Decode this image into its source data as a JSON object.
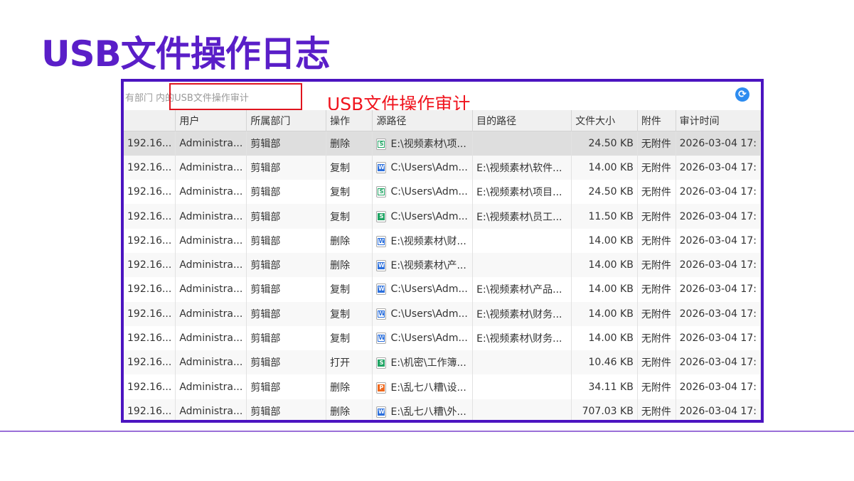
{
  "page": {
    "title": "USB文件操作日志"
  },
  "toolbar": {
    "breadcrumb": "有部门 内的USB文件操作审计",
    "annotation": "USB文件操作审计",
    "refresh_icon": "refresh-icon"
  },
  "colors": {
    "title": "#5a1ec8",
    "frame": "#4b14c0",
    "annotation": "#f0141e",
    "excel": "#1fa463",
    "word": "#2b6fdc",
    "ppt": "#f0691e"
  },
  "table": {
    "columns": [
      "",
      "用户",
      "所属部门",
      "操作",
      "源路径",
      "目的路径",
      "文件大小",
      "附件",
      "审计时间"
    ],
    "rows": [
      {
        "ip": "192.16...",
        "user": "Administra...",
        "dept": "剪辑部",
        "op": "删除",
        "icon": "excel-outline",
        "src": "E:\\视频素材\\项...",
        "dst": "",
        "size": "24.50 KB",
        "attach": "无附件",
        "time": "2026-03-04 17:"
      },
      {
        "ip": "192.16...",
        "user": "Administra...",
        "dept": "剪辑部",
        "op": "复制",
        "icon": "word-filled",
        "src": "C:\\Users\\Adm...",
        "dst": "E:\\视频素材\\软件...",
        "size": "14.00 KB",
        "attach": "无附件",
        "time": "2026-03-04 17:"
      },
      {
        "ip": "192.16...",
        "user": "Administra...",
        "dept": "剪辑部",
        "op": "复制",
        "icon": "excel-outline",
        "src": "C:\\Users\\Adm...",
        "dst": "E:\\视频素材\\项目...",
        "size": "24.50 KB",
        "attach": "无附件",
        "time": "2026-03-04 17:"
      },
      {
        "ip": "192.16...",
        "user": "Administra...",
        "dept": "剪辑部",
        "op": "复制",
        "icon": "excel-filled",
        "src": "C:\\Users\\Adm...",
        "dst": "E:\\视频素材\\员工...",
        "size": "11.50 KB",
        "attach": "无附件",
        "time": "2026-03-04 17:"
      },
      {
        "ip": "192.16...",
        "user": "Administra...",
        "dept": "剪辑部",
        "op": "删除",
        "icon": "word-outline",
        "src": "E:\\视频素材\\财...",
        "dst": "",
        "size": "14.00 KB",
        "attach": "无附件",
        "time": "2026-03-04 17:"
      },
      {
        "ip": "192.16...",
        "user": "Administra...",
        "dept": "剪辑部",
        "op": "删除",
        "icon": "word-filled",
        "src": "E:\\视频素材\\产...",
        "dst": "",
        "size": "14.00 KB",
        "attach": "无附件",
        "time": "2026-03-04 17:"
      },
      {
        "ip": "192.16...",
        "user": "Administra...",
        "dept": "剪辑部",
        "op": "复制",
        "icon": "word-filled",
        "src": "C:\\Users\\Adm...",
        "dst": "E:\\视频素材\\产品...",
        "size": "14.00 KB",
        "attach": "无附件",
        "time": "2026-03-04 17:"
      },
      {
        "ip": "192.16...",
        "user": "Administra...",
        "dept": "剪辑部",
        "op": "复制",
        "icon": "word-outline",
        "src": "C:\\Users\\Adm...",
        "dst": "E:\\视频素材\\财务...",
        "size": "14.00 KB",
        "attach": "无附件",
        "time": "2026-03-04 17:"
      },
      {
        "ip": "192.16...",
        "user": "Administra...",
        "dept": "剪辑部",
        "op": "复制",
        "icon": "word-outline",
        "src": "C:\\Users\\Adm...",
        "dst": "E:\\视频素材\\财务...",
        "size": "14.00 KB",
        "attach": "无附件",
        "time": "2026-03-04 17:"
      },
      {
        "ip": "192.16...",
        "user": "Administra...",
        "dept": "剪辑部",
        "op": "打开",
        "icon": "excel-filled",
        "src": "E:\\机密\\工作簿...",
        "dst": "",
        "size": "10.46 KB",
        "attach": "无附件",
        "time": "2026-03-04 17:"
      },
      {
        "ip": "192.16...",
        "user": "Administra...",
        "dept": "剪辑部",
        "op": "删除",
        "icon": "ppt-filled",
        "src": "E:\\乱七八糟\\设...",
        "dst": "",
        "size": "34.11 KB",
        "attach": "无附件",
        "time": "2026-03-04 17:"
      },
      {
        "ip": "192.16...",
        "user": "Administra...",
        "dept": "剪辑部",
        "op": "删除",
        "icon": "word-filled",
        "src": "E:\\乱七八糟\\外...",
        "dst": "",
        "size": "707.03 KB",
        "attach": "无附件",
        "time": "2026-03-04 17:"
      }
    ]
  }
}
